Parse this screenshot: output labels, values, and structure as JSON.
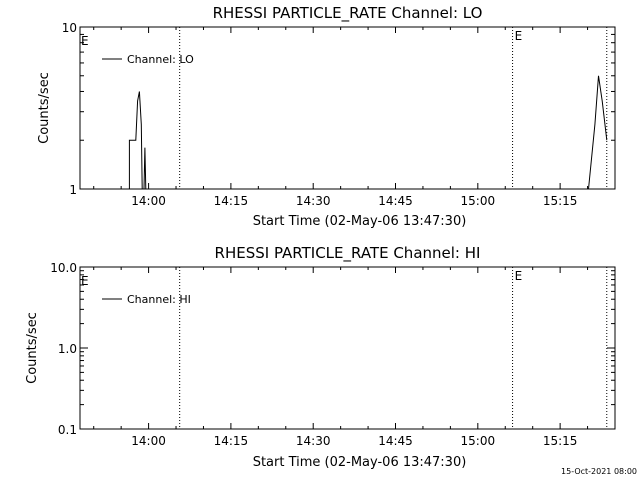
{
  "timestamp": "15-Oct-2021 08:00",
  "chart_data": [
    {
      "type": "line",
      "title": "RHESSI PARTICLE_RATE Channel: LO",
      "xlabel": "Start Time (02-May-06 13:47:30)",
      "ylabel": "Counts/sec",
      "yscale": "log",
      "xlim": [
        "13:47:30",
        "15:25:00"
      ],
      "ylim": [
        1,
        10
      ],
      "xticks": [
        "14:00",
        "14:15",
        "14:30",
        "14:45",
        "15:00",
        "15:15"
      ],
      "yticks": [
        "1",
        "10"
      ],
      "legend": "top-left",
      "series": [
        {
          "name": "Channel: LO",
          "color": "#000000",
          "points": [
            [
              "13:56:30",
              1.0
            ],
            [
              "13:56:30",
              2.0
            ],
            [
              "13:57:40",
              2.0
            ],
            [
              "13:58:00",
              3.5
            ],
            [
              "13:58:20",
              4.0
            ],
            [
              "13:58:40",
              2.5
            ],
            [
              "13:58:50",
              1.0
            ],
            [
              "13:59:10",
              1.0
            ],
            [
              "13:59:20",
              1.8
            ],
            [
              "13:59:30",
              1.0
            ],
            [
              "15:20:10",
              1.0
            ],
            [
              "15:21:20",
              2.5
            ],
            [
              "15:22:00",
              5.0
            ],
            [
              "15:22:40",
              3.5
            ],
            [
              "15:23:30",
              2.0
            ]
          ]
        }
      ],
      "markers": [
        {
          "time": "14:05:40",
          "label": ""
        },
        {
          "time": "15:06:20",
          "label": "E"
        },
        {
          "time": "15:23:30",
          "label": ""
        }
      ],
      "edge_label": "E"
    },
    {
      "type": "line",
      "title": "RHESSI PARTICLE_RATE Channel: HI",
      "xlabel": "Start Time (02-May-06 13:47:30)",
      "ylabel": "Counts/sec",
      "yscale": "log",
      "xlim": [
        "13:47:30",
        "15:25:00"
      ],
      "ylim": [
        0.1,
        10
      ],
      "xticks": [
        "14:00",
        "14:15",
        "14:30",
        "14:45",
        "15:00",
        "15:15"
      ],
      "yticks": [
        "0.1",
        "1.0",
        "10.0"
      ],
      "legend": "top-left",
      "series": [
        {
          "name": "Channel: HI",
          "color": "#000000",
          "points": []
        }
      ],
      "markers": [
        {
          "time": "14:05:40",
          "label": ""
        },
        {
          "time": "15:06:20",
          "label": "E"
        },
        {
          "time": "15:23:30",
          "label": ""
        }
      ],
      "edge_label": "E"
    }
  ]
}
